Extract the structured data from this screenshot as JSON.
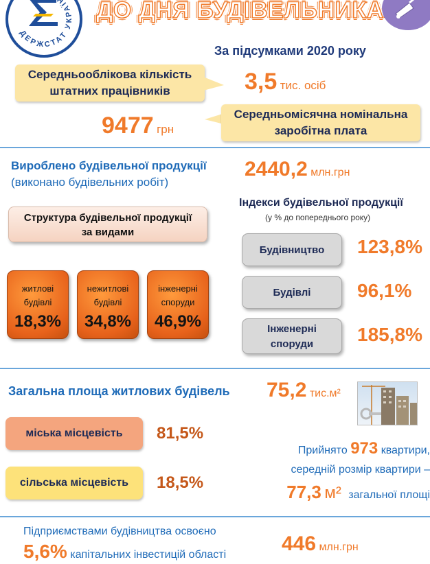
{
  "header": {
    "logo_ring_text": "ДЕРЖСТАТ УКРАЇНИ",
    "title": "ДО ДНЯ БУДІВЕЛЬНИКА",
    "subtitle": "За підсумками 2020 року"
  },
  "staff": {
    "label_line1": "Середньооблікова кількість",
    "label_line2": "штатних працівників",
    "value": "3,5",
    "unit": "тис. осіб"
  },
  "salary": {
    "value": "9477",
    "unit": "грн",
    "label_line1": "Середньомісячна номінальна",
    "label_line2": "заробітна плата"
  },
  "production": {
    "label": "Вироблено будівельної продукції",
    "sublabel": "(виконано будівельних робіт)",
    "value": "2440,2",
    "unit": "млн.грн"
  },
  "structure": {
    "label_line1": "Структура будівельної продукції",
    "label_line2": "за видами",
    "tiles": [
      {
        "line1": "житлові",
        "line2": "будівлі",
        "value": "18,3%"
      },
      {
        "line1": "нежитлові",
        "line2": "будівлі",
        "value": "34,8%"
      },
      {
        "line1": "інженерні",
        "line2": "споруди",
        "value": "46,9%"
      }
    ]
  },
  "indices": {
    "title": "Індекси будівельної продукції",
    "subtitle": "(у % до попереднього року)",
    "items": [
      {
        "label_line1": "Будівництво",
        "label_line2": "",
        "value": "123,8%"
      },
      {
        "label_line1": "Будівлі",
        "label_line2": "",
        "value": "96,1%"
      },
      {
        "label_line1": "Інженерні",
        "label_line2": "споруди",
        "value": "185,8%"
      }
    ]
  },
  "housing": {
    "label": "Загальна площа житлових будівель",
    "value": "75,2",
    "unit": "тис.м²",
    "urban_label": "міська місцевість",
    "urban_value": "81,5%",
    "rural_label": "сільська місцевість",
    "rural_value": "18,5%",
    "urban_color": "#f4a57e",
    "rural_color": "#fde27a"
  },
  "apartments": {
    "prefix": "Прийнято",
    "count": "973",
    "count_suffix": "квартири,",
    "line2": "середній розмір квартири  –",
    "size": "77,3",
    "size_unit": "м²",
    "size_suffix": "загальної площі"
  },
  "investment": {
    "line1": "Підприємствами будівництва освоєно",
    "share": "5,6%",
    "line2": "капітальних інвестицій області",
    "value": "446",
    "unit": "млн.грн"
  },
  "colors": {
    "accent_orange": "#f07a2a",
    "accent_blue": "#1f6bb8",
    "callout_yellow": "#fce6a6",
    "separator": "#6aa6db"
  }
}
